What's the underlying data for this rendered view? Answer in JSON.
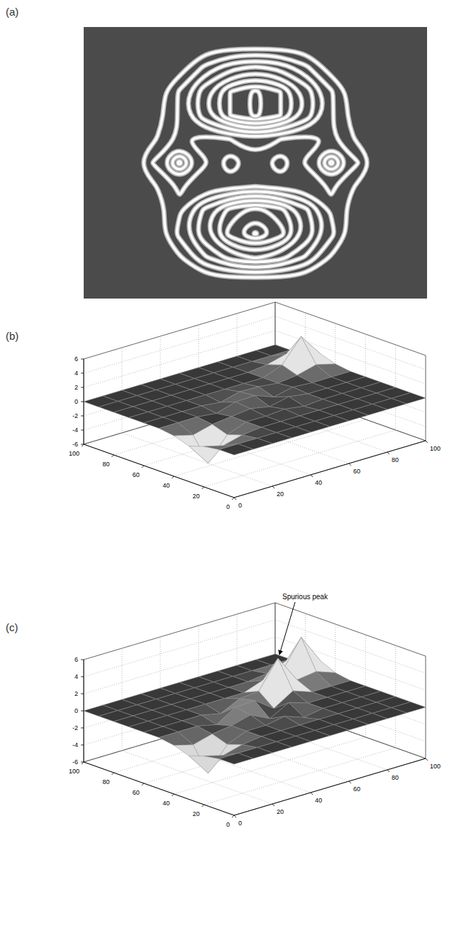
{
  "chart_data": [
    {
      "type": "contour",
      "title": "(a)",
      "tick_labels": false,
      "levels": [
        0.5,
        1.2,
        1.9,
        2.6,
        3.3,
        4,
        4.7,
        5.4,
        6.1
      ],
      "z": [
        [
          0,
          0,
          0,
          0,
          0,
          0,
          0,
          0,
          0,
          0,
          0,
          0,
          0
        ],
        [
          0,
          0,
          0,
          0.1,
          1.4,
          2.4,
          2.8,
          2.4,
          1.4,
          0.1,
          0,
          0,
          0
        ],
        [
          0,
          0,
          0,
          1.3,
          3.1,
          4.7,
          5.6,
          4.7,
          3.1,
          1.3,
          0,
          0,
          0
        ],
        [
          0,
          0,
          0,
          1.3,
          3.1,
          4.7,
          5.6,
          4.7,
          3.1,
          1.3,
          0,
          0,
          0
        ],
        [
          0,
          0,
          0.4,
          1.3,
          0.9,
          1.2,
          1.6,
          1.2,
          0.9,
          1.3,
          0.4,
          0,
          0
        ],
        [
          0,
          0,
          1.3,
          3.5,
          1.3,
          0,
          1.0,
          0,
          1.3,
          3.5,
          1.3,
          0,
          0
        ],
        [
          0,
          0,
          0.4,
          1.3,
          0.7,
          0.9,
          1.2,
          0.9,
          0.7,
          1.3,
          0.4,
          0,
          0
        ],
        [
          0,
          0,
          0,
          1.1,
          2.8,
          4.3,
          5.0,
          4.3,
          2.8,
          1.1,
          0,
          0,
          0
        ],
        [
          0,
          0,
          0,
          1.4,
          3.2,
          5.0,
          6.2,
          5.0,
          3.2,
          1.4,
          0,
          0,
          0
        ],
        [
          0,
          0,
          0,
          0.4,
          1.8,
          2.9,
          3.4,
          2.9,
          1.8,
          0.4,
          0,
          0,
          0
        ],
        [
          0,
          0,
          0,
          0,
          0,
          0,
          0,
          0,
          0,
          0,
          0,
          0,
          0
        ]
      ]
    },
    {
      "type": "surface",
      "title": "(b)",
      "grid": true,
      "xlim": [
        0,
        100
      ],
      "ylim": [
        0,
        100
      ],
      "zlim": [
        -6,
        6
      ],
      "xticks": [
        0,
        20,
        40,
        60,
        80,
        100
      ],
      "yticks": [
        0,
        20,
        40,
        60,
        80,
        100
      ],
      "zticks": [
        -6,
        -4,
        -2,
        0,
        2,
        4,
        6
      ],
      "x": [
        0,
        10,
        20,
        30,
        40,
        50,
        60,
        70,
        80,
        90,
        100
      ],
      "y": [
        0,
        10,
        20,
        30,
        40,
        50,
        60,
        70,
        80,
        90,
        100
      ],
      "z": [
        [
          0,
          0,
          0,
          0,
          0,
          0,
          0,
          0,
          0,
          0,
          0
        ],
        [
          0,
          0,
          0,
          0,
          0,
          0,
          0,
          0,
          0,
          0,
          0
        ],
        [
          -0.3,
          -1.0,
          -0.3,
          0,
          0,
          0,
          0,
          0,
          0,
          0,
          0
        ],
        [
          -1.0,
          -4.2,
          -1.0,
          0,
          0,
          0.2,
          -0.2,
          0,
          0,
          0,
          0
        ],
        [
          -0.3,
          -1.0,
          -0.3,
          0,
          0.3,
          -0.2,
          0.4,
          0,
          0,
          0,
          0
        ],
        [
          0,
          0,
          0,
          -0.3,
          0.5,
          0.6,
          -0.4,
          0.2,
          0,
          0,
          0
        ],
        [
          0,
          0,
          0,
          0,
          -0.3,
          0.4,
          0.3,
          0,
          0.3,
          1.0,
          0.3
        ],
        [
          0,
          0,
          0,
          0,
          0,
          0,
          0,
          0,
          1.0,
          4.2,
          1.0
        ],
        [
          0,
          0,
          0,
          0,
          0,
          0,
          0,
          0,
          0.3,
          1.0,
          0.3
        ],
        [
          0,
          0,
          0,
          0,
          0,
          0,
          0,
          0,
          0,
          0,
          0
        ],
        [
          0,
          0,
          0,
          0,
          0,
          0,
          0,
          0,
          0,
          0,
          0
        ]
      ]
    },
    {
      "type": "surface",
      "title": "(c)",
      "grid": true,
      "xlim": [
        0,
        100
      ],
      "ylim": [
        0,
        100
      ],
      "zlim": [
        -6,
        6
      ],
      "xticks": [
        0,
        20,
        40,
        60,
        80,
        100
      ],
      "yticks": [
        0,
        20,
        40,
        60,
        80,
        100
      ],
      "zticks": [
        -6,
        -4,
        -2,
        0,
        2,
        4,
        6
      ],
      "x": [
        0,
        10,
        20,
        30,
        40,
        50,
        60,
        70,
        80,
        90,
        100
      ],
      "y": [
        0,
        10,
        20,
        30,
        40,
        50,
        60,
        70,
        80,
        90,
        100
      ],
      "z": [
        [
          0,
          0,
          0,
          0,
          0,
          0,
          0,
          0,
          0,
          0,
          0
        ],
        [
          0,
          0,
          0,
          0,
          0,
          0,
          0,
          0,
          0,
          0,
          0
        ],
        [
          -0.3,
          -0.9,
          -0.3,
          0,
          0,
          0,
          0,
          0,
          0,
          0,
          0
        ],
        [
          -0.9,
          -3.6,
          -0.9,
          0,
          0,
          0.4,
          -0.4,
          0,
          0,
          0,
          0
        ],
        [
          -0.3,
          -0.9,
          -0.3,
          0,
          0.6,
          -0.5,
          0.7,
          0,
          0,
          0,
          0
        ],
        [
          0,
          0,
          0,
          -0.5,
          0.9,
          1.0,
          -0.6,
          0.8,
          0,
          0,
          0
        ],
        [
          0,
          0,
          0,
          0,
          -0.5,
          0.6,
          0.8,
          4.0,
          0.8,
          1.1,
          0.3
        ],
        [
          0,
          0,
          0,
          0,
          0,
          0,
          0,
          0.8,
          1.1,
          4.5,
          1.1
        ],
        [
          0,
          0,
          0,
          0,
          0,
          0,
          0,
          0,
          0.3,
          1.1,
          0.3
        ],
        [
          0,
          0,
          0,
          0,
          0,
          0,
          0,
          0,
          0,
          0,
          0
        ],
        [
          0,
          0,
          0,
          0,
          0,
          0,
          0,
          0,
          0,
          0,
          0
        ]
      ],
      "annotations": [
        {
          "text": "Spurious peak",
          "x": 70,
          "y": 60,
          "z": 4
        }
      ]
    }
  ]
}
